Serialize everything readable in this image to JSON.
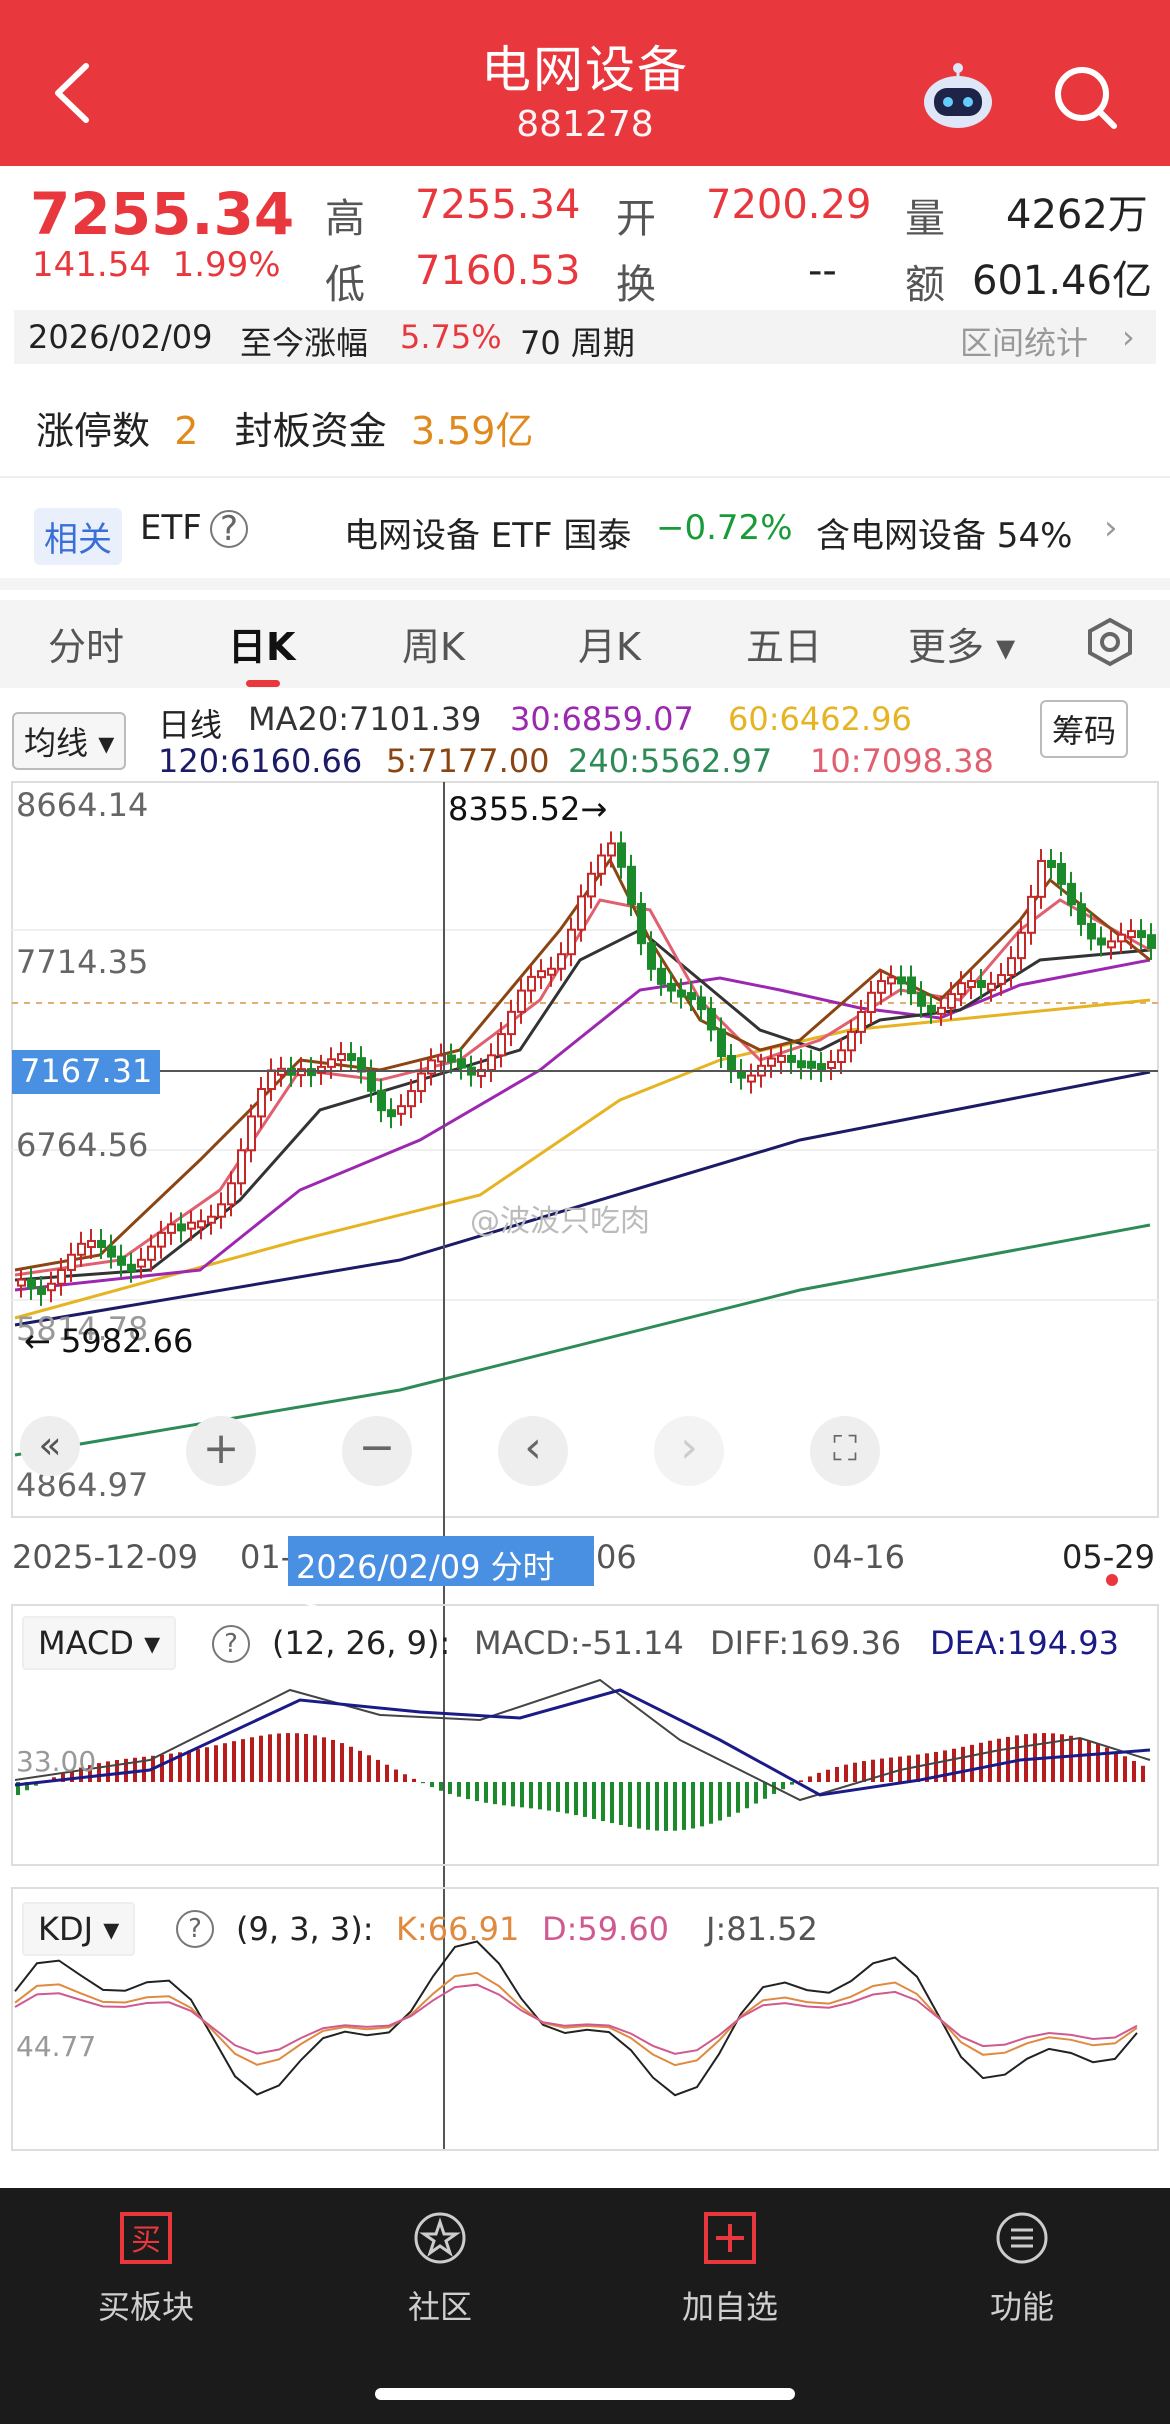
{
  "header": {
    "title": "电网设备",
    "code": "881278",
    "bg": "#e8373d"
  },
  "quote": {
    "price": "7255.34",
    "change": "141.54",
    "change_pct": "1.99%",
    "high_label": "高",
    "high": "7255.34",
    "open_label": "开",
    "open": "7200.29",
    "volume_label": "量",
    "volume": "4262万",
    "low_label": "低",
    "low": "7160.53",
    "turnover_label": "换",
    "turnover": "--",
    "amount_label": "额",
    "amount": "601.46亿"
  },
  "range": {
    "date": "2026/02/09",
    "text": "至今涨幅",
    "pct": "5.75%",
    "periods": "70 周期",
    "link": "区间统计"
  },
  "limit": {
    "count_label": "涨停数",
    "count": "2",
    "fund_label": "封板资金",
    "fund": "3.59亿"
  },
  "etf": {
    "tag": "相关",
    "label": "ETF",
    "help": "?",
    "name": "电网设备 ETF 国泰",
    "pct": "−0.72%",
    "holding": "含电网设备 54%"
  },
  "tabs": [
    "分时",
    "日K",
    "周K",
    "月K",
    "五日",
    "更多"
  ],
  "active_tab": "日K",
  "ma_legend": {
    "selector": "均线",
    "line_label": "日线",
    "ma20": "MA20:7101.39",
    "ma30": "30:6859.07",
    "ma60": "60:6462.96",
    "ma120": "120:6160.66",
    "ma5": "5:7177.00",
    "ma240": "240:5562.97",
    "ma10": "10:7098.38",
    "chip_button": "筹码",
    "colors": {
      "ma20": "#333333",
      "ma30": "#9c27b0",
      "ma60": "#e6b422",
      "ma120": "#1b1b66",
      "ma5": "#8b4513",
      "ma240": "#2e8b57",
      "ma10": "#e06070"
    }
  },
  "price_axis": {
    "p1": "8664.14",
    "p2": "7714.35",
    "p3": "6764.56",
    "p4": "5814.78",
    "p5": "4864.97"
  },
  "annotations": {
    "high_mark": "8355.52→",
    "low_mark": "← 5982.66",
    "crosshair_price": "7167.31"
  },
  "x_axis": {
    "d1": "2025-12-09",
    "d2": "01-",
    "d3": "06",
    "d4": "04-16",
    "d5": "05-29",
    "crosshair": "2026/02/09 分时 >"
  },
  "macd": {
    "selector": "MACD",
    "help": "?",
    "params": "(12, 26, 9):",
    "macd": "MACD:-51.14",
    "diff": "DIFF:169.36",
    "dea": "DEA:194.93",
    "axis": "33.00"
  },
  "kdj": {
    "selector": "KDJ",
    "help": "?",
    "params": "(9, 3, 3):",
    "k": "K:66.91",
    "d": "D:59.60",
    "j": "J:81.52",
    "axis": "44.77"
  },
  "watermark": "@波波只吃肉",
  "nav": [
    {
      "label": "买板块",
      "icon": "buy-icon"
    },
    {
      "label": "社区",
      "icon": "community-icon"
    },
    {
      "label": "加自选",
      "icon": "add-watchlist-icon"
    },
    {
      "label": "功能",
      "icon": "menu-icon"
    }
  ]
}
